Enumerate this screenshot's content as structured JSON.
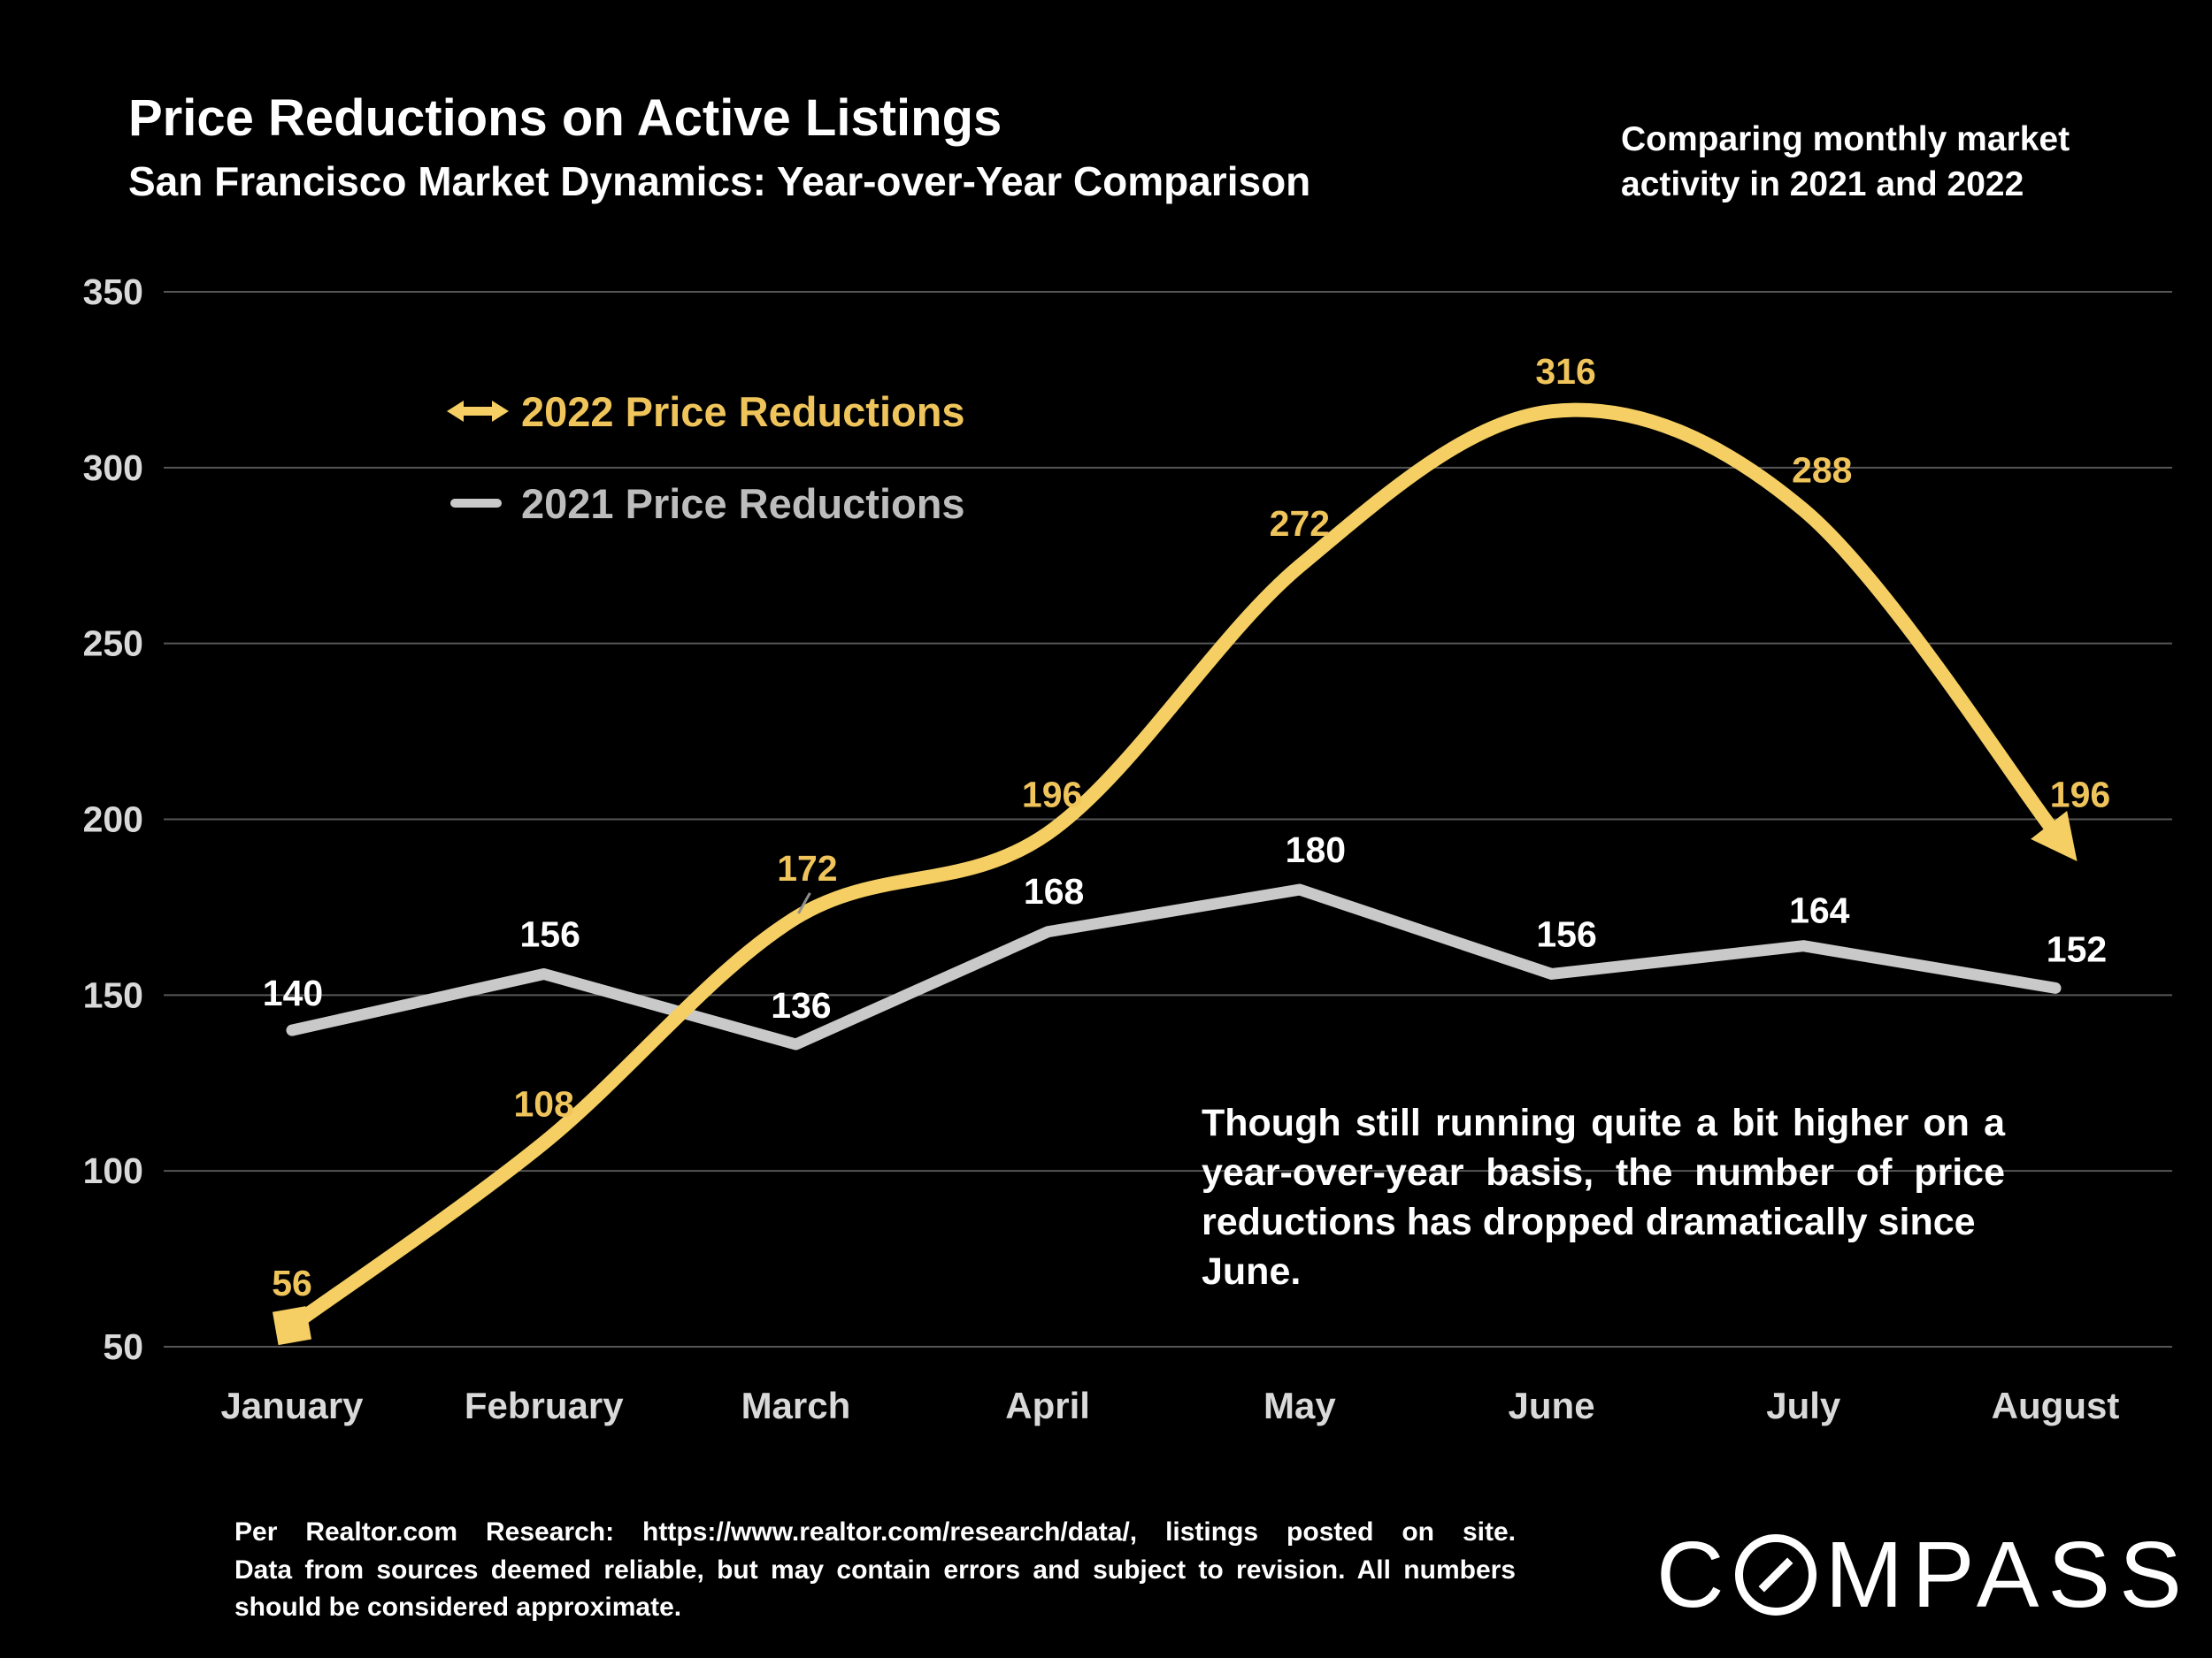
{
  "header": {
    "title": "Price Reductions on Active Listings",
    "subtitle": "San Francisco Market Dynamics: Year-over-Year Comparison",
    "note_lines": [
      "Comparing monthly market",
      "activity in 2021 and 2022"
    ]
  },
  "legend": [
    {
      "label": "2022 Price Reductions",
      "icon": "double-arrow-icon",
      "color": "#EFC45A"
    },
    {
      "label": "2021 Price Reductions",
      "icon": "dash-icon",
      "color": "#BDBDBD"
    }
  ],
  "annotation": {
    "lines": [
      "Though still running quite a bit higher on a",
      "year-over-year basis, the number of price",
      "reductions has dropped dramatically since June."
    ]
  },
  "footer": {
    "lines": [
      "Per Realtor.com Research:  https://www.realtor.com/research/data/, listings posted on site.",
      "Data from sources deemed reliable, but may contain errors and subject to revision. All numbers",
      "should be considered approximate."
    ]
  },
  "logo": {
    "text": "COMPASS"
  },
  "colors": {
    "background": "#000000",
    "gridline": "#565656",
    "axis_labels": "#D9D9D9",
    "accent_gold": "#F5CF63",
    "gold_label": "#EFC45A",
    "gray_line": "#C9C9C9",
    "white_label": "#FFFFFF"
  },
  "chart_data": {
    "type": "line",
    "title": "Price Reductions on Active Listings",
    "subtitle": "San Francisco Market Dynamics: Year-over-Year Comparison",
    "categories": [
      "January",
      "February",
      "March",
      "April",
      "May",
      "June",
      "July",
      "August"
    ],
    "series": [
      {
        "name": "2022 Price Reductions",
        "values": [
          56,
          108,
          172,
          196,
          272,
          316,
          288,
          196
        ],
        "color": "#F5CF63",
        "label_color": "#EFC45A",
        "style": "smooth, square start marker, arrow end marker"
      },
      {
        "name": "2021 Price Reductions",
        "values": [
          140,
          156,
          136,
          168,
          180,
          156,
          164,
          152
        ],
        "color": "#C9C9C9",
        "label_color": "#FFFFFF",
        "style": "straight segments"
      }
    ],
    "ylim": [
      50,
      350
    ],
    "yticks": [
      350,
      300,
      250,
      200,
      150,
      100,
      50
    ],
    "xlabel": "",
    "ylabel": "",
    "grid": "horizontal",
    "legend_position": "upper-left inside plot",
    "data_labels": true
  }
}
